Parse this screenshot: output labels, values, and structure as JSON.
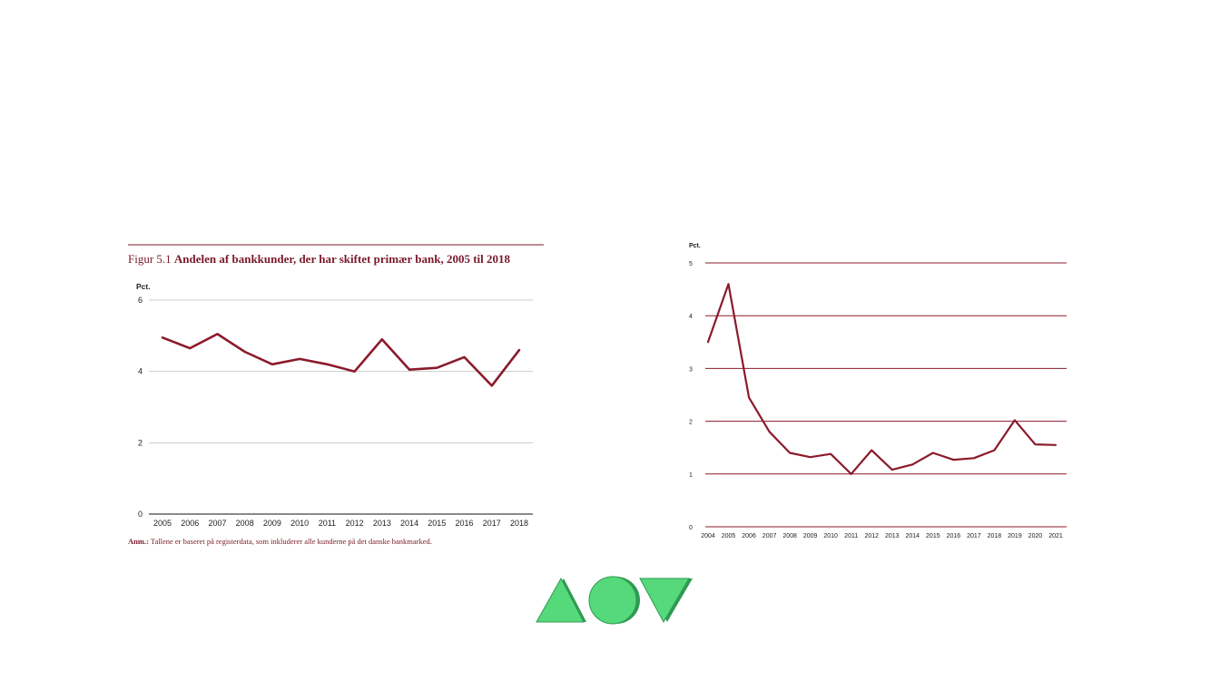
{
  "colors": {
    "line": "#8b1a2b",
    "grid_left": "#cccccc",
    "grid_right": "#8b1a2b",
    "title": "#7a1a2a",
    "logo_fill": "#55d97a",
    "logo_stroke": "#2e9a52"
  },
  "chart_data": [
    {
      "type": "line",
      "title_prefix": "Figur 5.1 ",
      "title": "Andelen af bankkunder, der har skiftet primær bank, 2005 til 2018",
      "ylabel": "Pct.",
      "x": [
        "2005",
        "2006",
        "2007",
        "2008",
        "2009",
        "2010",
        "2011",
        "2012",
        "2013",
        "2014",
        "2015",
        "2016",
        "2017",
        "2018"
      ],
      "series": [
        {
          "values": [
            4.95,
            4.65,
            5.05,
            4.55,
            4.2,
            4.35,
            4.2,
            4.0,
            4.9,
            4.05,
            4.1,
            4.4,
            3.6,
            4.6
          ]
        }
      ],
      "yticks": [
        0,
        2,
        4,
        6
      ],
      "ylim": [
        0,
        6
      ],
      "grid": true,
      "note_bold": "Anm.:",
      "note": " Tallene er baseret på registerdata, som inkluderer alle kunderne på det danske bankmarked."
    },
    {
      "type": "line",
      "title": "",
      "ylabel": "Pct.",
      "x": [
        "2004",
        "2005",
        "2006",
        "2007",
        "2008",
        "2009",
        "2010",
        "2011",
        "2012",
        "2013",
        "2014",
        "2015",
        "2016",
        "2017",
        "2018",
        "2019",
        "2020",
        "2021"
      ],
      "series": [
        {
          "values": [
            3.5,
            4.6,
            2.45,
            1.8,
            1.4,
            1.32,
            1.38,
            1.0,
            1.45,
            1.08,
            1.18,
            1.4,
            1.27,
            1.3,
            1.45,
            2.02,
            1.56,
            1.55
          ]
        }
      ],
      "yticks": [
        0,
        1,
        2,
        3,
        4,
        5
      ],
      "ylim": [
        0,
        5
      ],
      "grid": true
    }
  ],
  "logo": {
    "shapes": [
      "triangle-up",
      "circle",
      "triangle-down"
    ]
  }
}
